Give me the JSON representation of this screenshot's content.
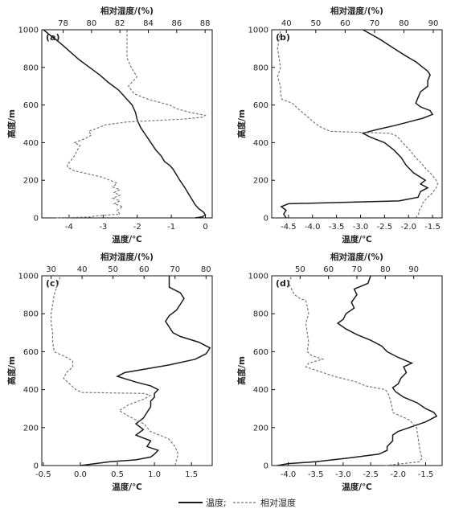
{
  "legend": {
    "temperature_label": "温度;",
    "humidity_label": "相对湿度",
    "temperature_color": "#1a1a1a",
    "humidity_color": "#777777"
  },
  "chart_data": [
    {
      "type": "line",
      "panel_label": "(a)",
      "xlabel": "温度/℃",
      "x2label": "相对湿度/(%)",
      "ylabel": "高度/m",
      "xlim": [
        -4.8,
        0.2
      ],
      "x2lim": [
        76.5,
        88.5
      ],
      "ylim": [
        0,
        1000
      ],
      "x_ticks": [
        -4,
        -3,
        -2,
        -1,
        0
      ],
      "x_tick_labels": [
        "-4",
        "-3",
        "-2",
        "-1",
        "0"
      ],
      "x2_ticks": [
        78,
        80,
        82,
        84,
        86,
        88
      ],
      "x2_tick_labels": [
        "78",
        "80",
        "82",
        "84",
        "86",
        "88"
      ],
      "y_ticks": [
        0,
        200,
        400,
        600,
        800,
        1000
      ],
      "y_tick_labels": [
        "0",
        "200",
        "400",
        "600",
        "800",
        "1000"
      ],
      "series": [
        {
          "name": "温度",
          "axis": "bottom",
          "y": [
            0,
            5,
            15,
            30,
            50,
            70,
            100,
            130,
            160,
            200,
            230,
            260,
            280,
            300,
            330,
            360,
            400,
            440,
            480,
            520,
            560,
            600,
            640,
            680,
            720,
            760,
            800,
            840,
            880,
            920,
            950,
            970,
            1000
          ],
          "x": [
            -0.3,
            -0.1,
            0.0,
            -0.05,
            -0.2,
            -0.3,
            -0.4,
            -0.5,
            -0.6,
            -0.75,
            -0.85,
            -0.95,
            -1.05,
            -1.2,
            -1.3,
            -1.45,
            -1.6,
            -1.75,
            -1.9,
            -2.0,
            -2.05,
            -2.15,
            -2.35,
            -2.55,
            -2.85,
            -3.1,
            -3.4,
            -3.7,
            -3.95,
            -4.2,
            -4.4,
            -4.55,
            -4.75
          ]
        },
        {
          "name": "相对湿度",
          "axis": "top",
          "y": [
            0,
            5,
            10,
            20,
            40,
            60,
            75,
            90,
            105,
            120,
            135,
            150,
            165,
            185,
            200,
            215,
            230,
            250,
            270,
            285,
            300,
            330,
            360,
            385,
            400,
            420,
            440,
            460,
            480,
            495,
            510,
            525,
            535,
            545,
            560,
            580,
            600,
            630,
            660,
            700,
            750,
            800,
            850,
            900,
            950,
            1000
          ],
          "x": [
            77.5,
            80.0,
            80.2,
            82.0,
            81.8,
            82.2,
            81.6,
            82.0,
            81.5,
            82.0,
            81.6,
            82.0,
            81.5,
            81.8,
            81.3,
            80.8,
            80.0,
            78.8,
            78.3,
            78.3,
            78.5,
            78.8,
            79.0,
            79.2,
            78.8,
            79.5,
            80.0,
            79.8,
            80.5,
            81.0,
            82.5,
            86.5,
            87.8,
            88.0,
            87.0,
            86.0,
            85.5,
            84.0,
            83.0,
            82.6,
            83.2,
            82.8,
            82.5,
            82.5,
            82.5,
            82.5
          ]
        }
      ]
    },
    {
      "type": "line",
      "panel_label": "(b)",
      "xlabel": "温度/℃",
      "x2label": "相对湿度/(%)",
      "ylabel": "高度/m",
      "xlim": [
        -4.85,
        -1.3
      ],
      "x2lim": [
        35,
        93
      ],
      "ylim": [
        0,
        1000
      ],
      "x_ticks": [
        -4.5,
        -4.0,
        -3.5,
        -3.0,
        -2.5,
        -2.0,
        -1.5
      ],
      "x_tick_labels": [
        "-4.5",
        "-4.0",
        "-3.5",
        "-3.0",
        "-2.5",
        "-2.0",
        "-1.5"
      ],
      "x2_ticks": [
        40,
        50,
        60,
        70,
        80,
        90
      ],
      "x2_tick_labels": [
        "40",
        "50",
        "60",
        "70",
        "80",
        "90"
      ],
      "y_ticks": [
        0,
        200,
        400,
        600,
        800,
        1000
      ],
      "y_tick_labels": [
        "0",
        "200",
        "400",
        "600",
        "800",
        "1000"
      ],
      "series": [
        {
          "name": "温度",
          "axis": "bottom",
          "y": [
            0,
            20,
            40,
            60,
            75,
            90,
            110,
            140,
            160,
            180,
            200,
            240,
            280,
            320,
            360,
            400,
            430,
            450,
            470,
            490,
            510,
            530,
            550,
            570,
            590,
            610,
            640,
            670,
            700,
            730,
            760,
            780,
            800,
            830,
            860,
            900,
            950,
            1000
          ],
          "x": [
            -4.55,
            -4.6,
            -4.55,
            -4.65,
            -4.5,
            -2.2,
            -1.8,
            -1.75,
            -1.6,
            -1.75,
            -1.65,
            -1.9,
            -2.05,
            -2.15,
            -2.3,
            -2.5,
            -2.8,
            -2.95,
            -2.65,
            -2.3,
            -2.0,
            -1.7,
            -1.5,
            -1.55,
            -1.75,
            -1.85,
            -1.8,
            -1.75,
            -1.6,
            -1.6,
            -1.55,
            -1.6,
            -1.7,
            -1.85,
            -2.05,
            -2.3,
            -2.6,
            -2.95
          ]
        },
        {
          "name": "相对湿度",
          "axis": "top",
          "y": [
            0,
            20,
            40,
            60,
            80,
            100,
            130,
            160,
            180,
            200,
            230,
            260,
            290,
            320,
            360,
            400,
            420,
            440,
            450,
            460,
            480,
            500,
            540,
            580,
            610,
            630,
            660,
            700,
            750,
            800,
            850,
            900,
            950,
            1000
          ],
          "x": [
            84,
            85,
            85.2,
            86,
            86.5,
            87.5,
            89.5,
            91.0,
            91.5,
            91.0,
            89.5,
            87.5,
            86.0,
            84.0,
            82.0,
            79.5,
            78.5,
            77.0,
            75.0,
            55.0,
            52.0,
            50.0,
            47.0,
            44.0,
            42.0,
            38.5,
            38.0,
            38.0,
            37.0,
            38.0,
            37.5,
            37.0,
            37.5,
            38.0
          ]
        }
      ]
    },
    {
      "type": "line",
      "panel_label": "(c)",
      "xlabel": "温度/℃",
      "x2label": "相对湿度/(%)",
      "ylabel": "高度/m",
      "xlim": [
        -0.52,
        1.78
      ],
      "x2lim": [
        27,
        82
      ],
      "ylim": [
        0,
        1000
      ],
      "x_ticks": [
        -0.5,
        0.0,
        0.5,
        1.0,
        1.5
      ],
      "x_tick_labels": [
        "-0.5",
        "0.0",
        "0.5",
        "1.0",
        "1.5"
      ],
      "x2_ticks": [
        30,
        40,
        50,
        60,
        70,
        80
      ],
      "x2_tick_labels": [
        "30",
        "40",
        "50",
        "60",
        "70",
        "80"
      ],
      "y_ticks": [
        0,
        200,
        400,
        600,
        800,
        1000
      ],
      "y_tick_labels": [
        "0",
        "200",
        "400",
        "600",
        "800",
        "1000"
      ],
      "series": [
        {
          "name": "温度",
          "axis": "bottom",
          "y": [
            0,
            10,
            20,
            30,
            45,
            60,
            80,
            100,
            130,
            160,
            190,
            220,
            250,
            280,
            310,
            340,
            360,
            380,
            400,
            420,
            440,
            470,
            490,
            510,
            530,
            560,
            590,
            620,
            650,
            680,
            700,
            730,
            760,
            790,
            820,
            850,
            880,
            910,
            940,
            970,
            1000
          ],
          "x": [
            0.0,
            0.2,
            0.4,
            0.75,
            0.95,
            1.0,
            1.05,
            0.9,
            0.95,
            0.75,
            0.85,
            0.75,
            0.85,
            0.9,
            0.95,
            0.95,
            1.0,
            1.0,
            1.05,
            0.95,
            0.75,
            0.5,
            0.6,
            0.9,
            1.2,
            1.55,
            1.7,
            1.75,
            1.6,
            1.35,
            1.25,
            1.2,
            1.15,
            1.2,
            1.3,
            1.35,
            1.4,
            1.35,
            1.2,
            1.2,
            1.2
          ]
        },
        {
          "name": "相对湿度",
          "axis": "top",
          "y": [
            0,
            30,
            60,
            100,
            140,
            180,
            220,
            260,
            290,
            320,
            350,
            370,
            380,
            385,
            400,
            430,
            460,
            490,
            520,
            550,
            570,
            600,
            650,
            700,
            750,
            800,
            850,
            900,
            950,
            1000
          ],
          "x": [
            70,
            70.5,
            71,
            70,
            68,
            62,
            60,
            55,
            52,
            55,
            60,
            62,
            60,
            40,
            38,
            36,
            34,
            35,
            37,
            37,
            35,
            31,
            30.5,
            30.5,
            30,
            30,
            30.5,
            31,
            32,
            33
          ]
        }
      ]
    },
    {
      "type": "line",
      "panel_label": "(d)",
      "xlabel": "温度/℃",
      "x2label": "相对湿度/(%)",
      "ylabel": "高度/m",
      "xlim": [
        -4.3,
        -1.2
      ],
      "x2lim": [
        40,
        100
      ],
      "ylim": [
        0,
        1000
      ],
      "x_ticks": [
        -4.0,
        -3.5,
        -3.0,
        -2.5,
        -2.0,
        -1.5
      ],
      "x_tick_labels": [
        "-4.0",
        "-3.5",
        "-3.0",
        "-2.5",
        "-2.0",
        "-1.5"
      ],
      "x2_ticks": [
        50,
        60,
        70,
        80,
        90
      ],
      "x2_tick_labels": [
        "50",
        "60",
        "70",
        "80",
        "90"
      ],
      "y_ticks": [
        0,
        200,
        400,
        600,
        800,
        1000
      ],
      "y_tick_labels": [
        "0",
        "200",
        "400",
        "600",
        "800",
        "1000"
      ],
      "series": [
        {
          "name": "温度",
          "axis": "bottom",
          "y": [
            0,
            10,
            20,
            40,
            60,
            80,
            100,
            130,
            160,
            180,
            200,
            230,
            260,
            280,
            300,
            330,
            360,
            390,
            410,
            430,
            460,
            490,
            520,
            540,
            570,
            600,
            630,
            660,
            690,
            720,
            750,
            770,
            800,
            830,
            860,
            900,
            930,
            960,
            1000
          ],
          "x": [
            -4.2,
            -4.0,
            -3.5,
            -2.9,
            -2.35,
            -2.2,
            -2.2,
            -2.1,
            -2.1,
            -2.0,
            -1.8,
            -1.5,
            -1.3,
            -1.35,
            -1.5,
            -1.65,
            -1.9,
            -2.05,
            -2.1,
            -2.0,
            -1.95,
            -1.85,
            -1.9,
            -1.75,
            -2.0,
            -2.2,
            -2.3,
            -2.5,
            -2.75,
            -2.95,
            -3.1,
            -3.0,
            -2.95,
            -2.8,
            -2.85,
            -2.75,
            -2.8,
            -2.55,
            -2.5
          ]
        },
        {
          "name": "相对湿度",
          "axis": "top",
          "y": [
            0,
            20,
            40,
            60,
            100,
            150,
            200,
            240,
            260,
            280,
            300,
            330,
            360,
            380,
            400,
            420,
            440,
            470,
            500,
            520,
            540,
            560,
            580,
            600,
            650,
            700,
            750,
            800,
            840,
            870,
            880,
            900,
            930,
            960,
            1000
          ],
          "x": [
            80,
            92,
            93,
            92.5,
            92,
            91.5,
            91,
            88.5,
            85.5,
            82.5,
            82.5,
            82.0,
            81.5,
            81.0,
            80.0,
            73.0,
            70.0,
            62.0,
            56.0,
            52.0,
            53.0,
            58.0,
            54.0,
            52.5,
            53.0,
            52.5,
            52.0,
            53.0,
            52.5,
            52.0,
            50.0,
            48.0,
            47.0,
            46.0,
            47.0
          ]
        }
      ]
    }
  ]
}
